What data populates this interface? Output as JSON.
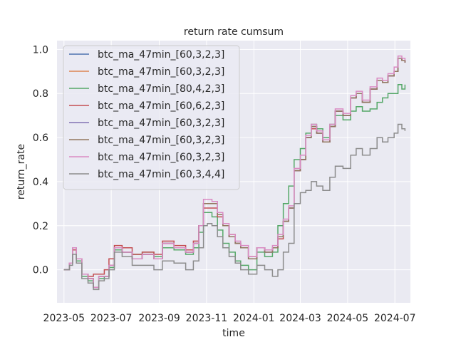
{
  "chart_data": {
    "type": "line",
    "title": "return rate cumsum",
    "xlabel": "time",
    "ylabel": "return_rate",
    "xlim": [
      "2023-04-22",
      "2024-07-21"
    ],
    "ylim": [
      -0.15,
      1.04
    ],
    "xticks": [
      "2023-05",
      "2023-07",
      "2023-09",
      "2023-11",
      "2024-01",
      "2024-03",
      "2024-05",
      "2024-07"
    ],
    "yticks": [
      0.0,
      0.2,
      0.4,
      0.6,
      0.8,
      1.0
    ],
    "ytick_labels": [
      "0.0",
      "0.2",
      "0.4",
      "0.6",
      "0.8",
      "1.0"
    ],
    "grid": true,
    "legend_position": "upper-left",
    "series": [
      {
        "name": "btc_ma_47min_[60,3,2,3]",
        "color": "#4c72b0",
        "x": [
          "2023-05-01",
          "2023-05-08",
          "2023-05-12",
          "2023-05-17",
          "2023-05-24",
          "2023-06-01",
          "2023-06-08",
          "2023-06-15",
          "2023-06-22",
          "2023-06-28",
          "2023-07-05",
          "2023-07-15",
          "2023-07-28",
          "2023-08-10",
          "2023-08-25",
          "2023-09-05",
          "2023-09-20",
          "2023-10-05",
          "2023-10-15",
          "2023-10-22",
          "2023-10-28",
          "2023-11-02",
          "2023-11-08",
          "2023-11-15",
          "2023-11-22",
          "2023-11-30",
          "2023-12-08",
          "2023-12-15",
          "2023-12-25",
          "2024-01-05",
          "2024-01-15",
          "2024-01-25",
          "2024-02-01",
          "2024-02-08",
          "2024-02-15",
          "2024-02-22",
          "2024-03-01",
          "2024-03-08",
          "2024-03-15",
          "2024-03-22",
          "2024-03-30",
          "2024-04-08",
          "2024-04-15",
          "2024-04-25",
          "2024-05-05",
          "2024-05-12",
          "2024-05-20",
          "2024-05-30",
          "2024-06-08",
          "2024-06-15",
          "2024-06-22",
          "2024-06-30",
          "2024-07-05",
          "2024-07-10",
          "2024-07-14"
        ],
        "y": [
          0.0,
          0.03,
          0.1,
          0.05,
          -0.02,
          -0.04,
          -0.08,
          -0.03,
          -0.03,
          0.02,
          0.1,
          0.08,
          0.05,
          0.07,
          0.05,
          0.12,
          0.1,
          0.08,
          0.12,
          0.2,
          0.3,
          0.3,
          0.3,
          0.25,
          0.2,
          0.15,
          0.12,
          0.1,
          0.05,
          0.1,
          0.08,
          0.1,
          0.15,
          0.22,
          0.28,
          0.45,
          0.5,
          0.6,
          0.65,
          0.62,
          0.58,
          0.65,
          0.72,
          0.7,
          0.78,
          0.8,
          0.76,
          0.82,
          0.86,
          0.85,
          0.88,
          0.9,
          0.96,
          0.95,
          0.94
        ]
      },
      {
        "name": "btc_ma_47min_[60,3,2,3]",
        "color": "#dd8452",
        "x": [
          "2023-05-01",
          "2023-05-08",
          "2023-05-12",
          "2023-05-17",
          "2023-05-24",
          "2023-06-01",
          "2023-06-08",
          "2023-06-15",
          "2023-06-22",
          "2023-06-28",
          "2023-07-05",
          "2023-07-15",
          "2023-07-28",
          "2023-08-10",
          "2023-08-25",
          "2023-09-05",
          "2023-09-20",
          "2023-10-05",
          "2023-10-15",
          "2023-10-22",
          "2023-10-28",
          "2023-11-02",
          "2023-11-08",
          "2023-11-15",
          "2023-11-22",
          "2023-11-30",
          "2023-12-08",
          "2023-12-15",
          "2023-12-25",
          "2024-01-05",
          "2024-01-15",
          "2024-01-25",
          "2024-02-01",
          "2024-02-08",
          "2024-02-15",
          "2024-02-22",
          "2024-03-01",
          "2024-03-08",
          "2024-03-15",
          "2024-03-22",
          "2024-03-30",
          "2024-04-08",
          "2024-04-15",
          "2024-04-25",
          "2024-05-05",
          "2024-05-12",
          "2024-05-20",
          "2024-05-30",
          "2024-06-08",
          "2024-06-15",
          "2024-06-22",
          "2024-06-30",
          "2024-07-05",
          "2024-07-10",
          "2024-07-14"
        ],
        "y": [
          0.0,
          0.03,
          0.1,
          0.05,
          -0.02,
          -0.04,
          -0.08,
          -0.03,
          -0.03,
          0.02,
          0.1,
          0.08,
          0.05,
          0.07,
          0.05,
          0.12,
          0.1,
          0.08,
          0.12,
          0.2,
          0.3,
          0.3,
          0.3,
          0.25,
          0.2,
          0.15,
          0.12,
          0.1,
          0.05,
          0.1,
          0.08,
          0.1,
          0.15,
          0.22,
          0.28,
          0.45,
          0.5,
          0.6,
          0.65,
          0.62,
          0.58,
          0.65,
          0.72,
          0.7,
          0.78,
          0.8,
          0.76,
          0.82,
          0.86,
          0.85,
          0.88,
          0.9,
          0.96,
          0.95,
          0.94
        ]
      },
      {
        "name": "btc_ma_47min_[80,4,2,3]",
        "color": "#55a868",
        "x": [
          "2023-05-01",
          "2023-05-08",
          "2023-05-12",
          "2023-05-17",
          "2023-05-24",
          "2023-06-01",
          "2023-06-08",
          "2023-06-15",
          "2023-06-22",
          "2023-06-28",
          "2023-07-05",
          "2023-07-15",
          "2023-07-28",
          "2023-08-10",
          "2023-08-25",
          "2023-09-05",
          "2023-09-20",
          "2023-10-05",
          "2023-10-15",
          "2023-10-22",
          "2023-10-28",
          "2023-11-02",
          "2023-11-08",
          "2023-11-15",
          "2023-11-22",
          "2023-11-30",
          "2023-12-08",
          "2023-12-15",
          "2023-12-25",
          "2024-01-05",
          "2024-01-15",
          "2024-01-25",
          "2024-02-01",
          "2024-02-08",
          "2024-02-15",
          "2024-02-22",
          "2024-03-01",
          "2024-03-08",
          "2024-03-15",
          "2024-03-22",
          "2024-03-30",
          "2024-04-08",
          "2024-04-15",
          "2024-04-25",
          "2024-05-05",
          "2024-05-12",
          "2024-05-20",
          "2024-05-30",
          "2024-06-08",
          "2024-06-15",
          "2024-06-22",
          "2024-06-30",
          "2024-07-05",
          "2024-07-10",
          "2024-07-14"
        ],
        "y": [
          0.0,
          0.03,
          0.09,
          0.04,
          -0.03,
          -0.05,
          -0.08,
          -0.04,
          -0.03,
          0.01,
          0.09,
          0.08,
          0.07,
          0.08,
          0.06,
          0.1,
          0.09,
          0.07,
          0.1,
          0.17,
          0.26,
          0.26,
          0.24,
          0.18,
          0.12,
          0.08,
          0.04,
          0.02,
          0.0,
          0.08,
          0.06,
          0.08,
          0.2,
          0.3,
          0.38,
          0.5,
          0.55,
          0.62,
          0.66,
          0.64,
          0.6,
          0.66,
          0.7,
          0.68,
          0.72,
          0.74,
          0.72,
          0.73,
          0.76,
          0.78,
          0.8,
          0.8,
          0.84,
          0.82,
          0.84
        ]
      },
      {
        "name": "btc_ma_47min_[60,6,2,3]",
        "color": "#c44e52",
        "x": [
          "2023-05-01",
          "2023-05-08",
          "2023-05-12",
          "2023-05-17",
          "2023-05-24",
          "2023-06-01",
          "2023-06-08",
          "2023-06-15",
          "2023-06-22",
          "2023-06-28",
          "2023-07-05",
          "2023-07-15",
          "2023-07-28",
          "2023-08-10",
          "2023-08-25",
          "2023-09-05",
          "2023-09-20",
          "2023-10-05",
          "2023-10-15",
          "2023-10-22",
          "2023-10-28",
          "2023-11-02",
          "2023-11-08",
          "2023-11-15",
          "2023-11-22",
          "2023-11-30",
          "2023-12-08",
          "2023-12-15",
          "2023-12-25",
          "2024-01-05",
          "2024-01-15",
          "2024-01-25",
          "2024-02-01",
          "2024-02-08",
          "2024-02-15",
          "2024-02-22",
          "2024-03-01",
          "2024-03-08",
          "2024-03-15",
          "2024-03-22",
          "2024-03-30",
          "2024-04-08",
          "2024-04-15",
          "2024-04-25",
          "2024-05-05",
          "2024-05-12",
          "2024-05-20",
          "2024-05-30",
          "2024-06-08",
          "2024-06-15",
          "2024-06-22",
          "2024-06-30",
          "2024-07-05",
          "2024-07-10",
          "2024-07-14"
        ],
        "y": [
          0.0,
          0.03,
          0.09,
          0.05,
          -0.02,
          -0.03,
          -0.02,
          -0.02,
          0.0,
          0.05,
          0.11,
          0.1,
          0.07,
          0.08,
          0.07,
          0.13,
          0.11,
          0.09,
          0.13,
          0.2,
          0.28,
          0.28,
          0.28,
          0.24,
          0.2,
          0.16,
          0.12,
          0.1,
          0.06,
          0.1,
          0.09,
          0.1,
          0.14,
          0.22,
          0.28,
          0.45,
          0.5,
          0.6,
          0.64,
          0.62,
          0.58,
          0.65,
          0.72,
          0.7,
          0.78,
          0.8,
          0.76,
          0.82,
          0.86,
          0.85,
          0.88,
          0.9,
          0.96,
          0.95,
          0.94
        ]
      },
      {
        "name": "btc_ma_47min_[60,3,2,3]",
        "color": "#8172b3",
        "x": [
          "2023-05-01",
          "2023-05-08",
          "2023-05-12",
          "2023-05-17",
          "2023-05-24",
          "2023-06-01",
          "2023-06-08",
          "2023-06-15",
          "2023-06-22",
          "2023-06-28",
          "2023-07-05",
          "2023-07-15",
          "2023-07-28",
          "2023-08-10",
          "2023-08-25",
          "2023-09-05",
          "2023-09-20",
          "2023-10-05",
          "2023-10-15",
          "2023-10-22",
          "2023-10-28",
          "2023-11-02",
          "2023-11-08",
          "2023-11-15",
          "2023-11-22",
          "2023-11-30",
          "2023-12-08",
          "2023-12-15",
          "2023-12-25",
          "2024-01-05",
          "2024-01-15",
          "2024-01-25",
          "2024-02-01",
          "2024-02-08",
          "2024-02-15",
          "2024-02-22",
          "2024-03-01",
          "2024-03-08",
          "2024-03-15",
          "2024-03-22",
          "2024-03-30",
          "2024-04-08",
          "2024-04-15",
          "2024-04-25",
          "2024-05-05",
          "2024-05-12",
          "2024-05-20",
          "2024-05-30",
          "2024-06-08",
          "2024-06-15",
          "2024-06-22",
          "2024-06-30",
          "2024-07-05",
          "2024-07-10",
          "2024-07-14"
        ],
        "y": [
          0.0,
          0.03,
          0.1,
          0.05,
          -0.02,
          -0.04,
          -0.08,
          -0.03,
          -0.03,
          0.02,
          0.1,
          0.08,
          0.05,
          0.07,
          0.05,
          0.12,
          0.1,
          0.08,
          0.12,
          0.2,
          0.3,
          0.3,
          0.3,
          0.25,
          0.2,
          0.15,
          0.12,
          0.1,
          0.05,
          0.1,
          0.08,
          0.1,
          0.15,
          0.22,
          0.28,
          0.45,
          0.5,
          0.6,
          0.65,
          0.62,
          0.58,
          0.65,
          0.72,
          0.7,
          0.78,
          0.8,
          0.76,
          0.82,
          0.86,
          0.85,
          0.88,
          0.9,
          0.96,
          0.95,
          0.94
        ]
      },
      {
        "name": "btc_ma_47min_[60,3,2,3]",
        "color": "#937860",
        "x": [
          "2023-05-01",
          "2023-05-08",
          "2023-05-12",
          "2023-05-17",
          "2023-05-24",
          "2023-06-01",
          "2023-06-08",
          "2023-06-15",
          "2023-06-22",
          "2023-06-28",
          "2023-07-05",
          "2023-07-15",
          "2023-07-28",
          "2023-08-10",
          "2023-08-25",
          "2023-09-05",
          "2023-09-20",
          "2023-10-05",
          "2023-10-15",
          "2023-10-22",
          "2023-10-28",
          "2023-11-02",
          "2023-11-08",
          "2023-11-15",
          "2023-11-22",
          "2023-11-30",
          "2023-12-08",
          "2023-12-15",
          "2023-12-25",
          "2024-01-05",
          "2024-01-15",
          "2024-01-25",
          "2024-02-01",
          "2024-02-08",
          "2024-02-15",
          "2024-02-22",
          "2024-03-01",
          "2024-03-08",
          "2024-03-15",
          "2024-03-22",
          "2024-03-30",
          "2024-04-08",
          "2024-04-15",
          "2024-04-25",
          "2024-05-05",
          "2024-05-12",
          "2024-05-20",
          "2024-05-30",
          "2024-06-08",
          "2024-06-15",
          "2024-06-22",
          "2024-06-30",
          "2024-07-05",
          "2024-07-10",
          "2024-07-14"
        ],
        "y": [
          0.0,
          0.03,
          0.1,
          0.05,
          -0.02,
          -0.04,
          -0.08,
          -0.03,
          -0.03,
          0.02,
          0.1,
          0.08,
          0.05,
          0.07,
          0.05,
          0.12,
          0.1,
          0.08,
          0.12,
          0.2,
          0.3,
          0.3,
          0.3,
          0.25,
          0.2,
          0.15,
          0.12,
          0.1,
          0.05,
          0.1,
          0.08,
          0.1,
          0.15,
          0.22,
          0.28,
          0.45,
          0.5,
          0.6,
          0.65,
          0.62,
          0.58,
          0.65,
          0.72,
          0.7,
          0.78,
          0.8,
          0.76,
          0.82,
          0.86,
          0.85,
          0.88,
          0.9,
          0.96,
          0.95,
          0.94
        ]
      },
      {
        "name": "btc_ma_47min_[60,3,2,3]",
        "color": "#da8bc3",
        "x": [
          "2023-05-01",
          "2023-05-08",
          "2023-05-12",
          "2023-05-17",
          "2023-05-24",
          "2023-06-01",
          "2023-06-08",
          "2023-06-15",
          "2023-06-22",
          "2023-06-28",
          "2023-07-05",
          "2023-07-15",
          "2023-07-28",
          "2023-08-10",
          "2023-08-25",
          "2023-09-05",
          "2023-09-20",
          "2023-10-05",
          "2023-10-15",
          "2023-10-22",
          "2023-10-28",
          "2023-11-02",
          "2023-11-08",
          "2023-11-15",
          "2023-11-22",
          "2023-11-30",
          "2023-12-08",
          "2023-12-15",
          "2023-12-25",
          "2024-01-05",
          "2024-01-15",
          "2024-01-25",
          "2024-02-01",
          "2024-02-08",
          "2024-02-15",
          "2024-02-22",
          "2024-03-01",
          "2024-03-08",
          "2024-03-15",
          "2024-03-22",
          "2024-03-30",
          "2024-04-08",
          "2024-04-15",
          "2024-04-25",
          "2024-05-05",
          "2024-05-12",
          "2024-05-20",
          "2024-05-30",
          "2024-06-08",
          "2024-06-15",
          "2024-06-22",
          "2024-06-30",
          "2024-07-05",
          "2024-07-10",
          "2024-07-14"
        ],
        "y": [
          0.0,
          0.03,
          0.1,
          0.05,
          -0.02,
          -0.04,
          -0.08,
          -0.03,
          -0.03,
          0.02,
          0.1,
          0.08,
          0.05,
          0.07,
          0.05,
          0.12,
          0.1,
          0.08,
          0.12,
          0.2,
          0.32,
          0.32,
          0.31,
          0.26,
          0.21,
          0.16,
          0.13,
          0.11,
          0.06,
          0.1,
          0.09,
          0.11,
          0.16,
          0.23,
          0.29,
          0.46,
          0.52,
          0.61,
          0.66,
          0.63,
          0.59,
          0.66,
          0.73,
          0.71,
          0.79,
          0.81,
          0.77,
          0.83,
          0.87,
          0.86,
          0.89,
          0.92,
          0.97,
          0.96,
          0.95
        ]
      },
      {
        "name": "btc_ma_47min_[60,3,4,4]",
        "color": "#8c8c8c",
        "x": [
          "2023-05-01",
          "2023-05-08",
          "2023-05-12",
          "2023-05-17",
          "2023-05-24",
          "2023-06-01",
          "2023-06-08",
          "2023-06-15",
          "2023-06-22",
          "2023-06-28",
          "2023-07-05",
          "2023-07-15",
          "2023-07-28",
          "2023-08-10",
          "2023-08-25",
          "2023-09-05",
          "2023-09-20",
          "2023-10-05",
          "2023-10-15",
          "2023-10-22",
          "2023-10-28",
          "2023-11-02",
          "2023-11-08",
          "2023-11-15",
          "2023-11-22",
          "2023-11-30",
          "2023-12-08",
          "2023-12-15",
          "2023-12-25",
          "2024-01-05",
          "2024-01-15",
          "2024-01-25",
          "2024-02-01",
          "2024-02-08",
          "2024-02-15",
          "2024-02-22",
          "2024-03-01",
          "2024-03-08",
          "2024-03-15",
          "2024-03-22",
          "2024-03-30",
          "2024-04-08",
          "2024-04-15",
          "2024-04-25",
          "2024-05-05",
          "2024-05-12",
          "2024-05-20",
          "2024-05-30",
          "2024-06-08",
          "2024-06-15",
          "2024-06-22",
          "2024-06-30",
          "2024-07-05",
          "2024-07-10",
          "2024-07-14"
        ],
        "y": [
          0.0,
          0.02,
          0.07,
          0.03,
          -0.04,
          -0.06,
          -0.09,
          -0.05,
          -0.04,
          0.0,
          0.08,
          0.06,
          0.02,
          0.02,
          0.0,
          0.04,
          0.03,
          0.0,
          0.04,
          0.1,
          0.2,
          0.21,
          0.2,
          0.15,
          0.1,
          0.06,
          0.03,
          0.0,
          -0.02,
          0.02,
          0.0,
          -0.03,
          0.0,
          0.08,
          0.12,
          0.3,
          0.35,
          0.36,
          0.4,
          0.38,
          0.36,
          0.42,
          0.47,
          0.46,
          0.52,
          0.55,
          0.52,
          0.55,
          0.6,
          0.58,
          0.6,
          0.62,
          0.66,
          0.64,
          0.63
        ]
      }
    ]
  }
}
